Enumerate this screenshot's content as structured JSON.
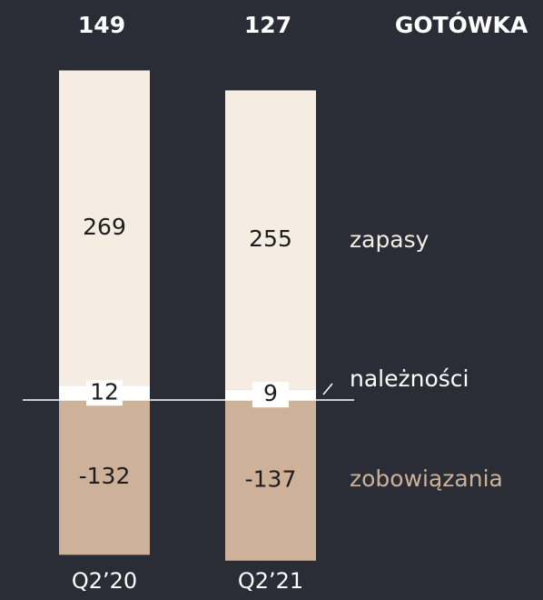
{
  "chart_data": {
    "type": "bar",
    "stacked": true,
    "categories": [
      "Q2’20",
      "Q2’21"
    ],
    "series": [
      {
        "name": "należności",
        "color": "#ffffff",
        "values": [
          12,
          9
        ]
      },
      {
        "name": "zapasy",
        "color": "#f5ede1",
        "values": [
          269,
          255
        ]
      },
      {
        "name": "zobowiązania",
        "color": "#cdb299",
        "values": [
          -132,
          -137
        ]
      }
    ],
    "totals": {
      "name": "GOTÓWKA",
      "values": [
        149,
        127
      ]
    }
  }
}
